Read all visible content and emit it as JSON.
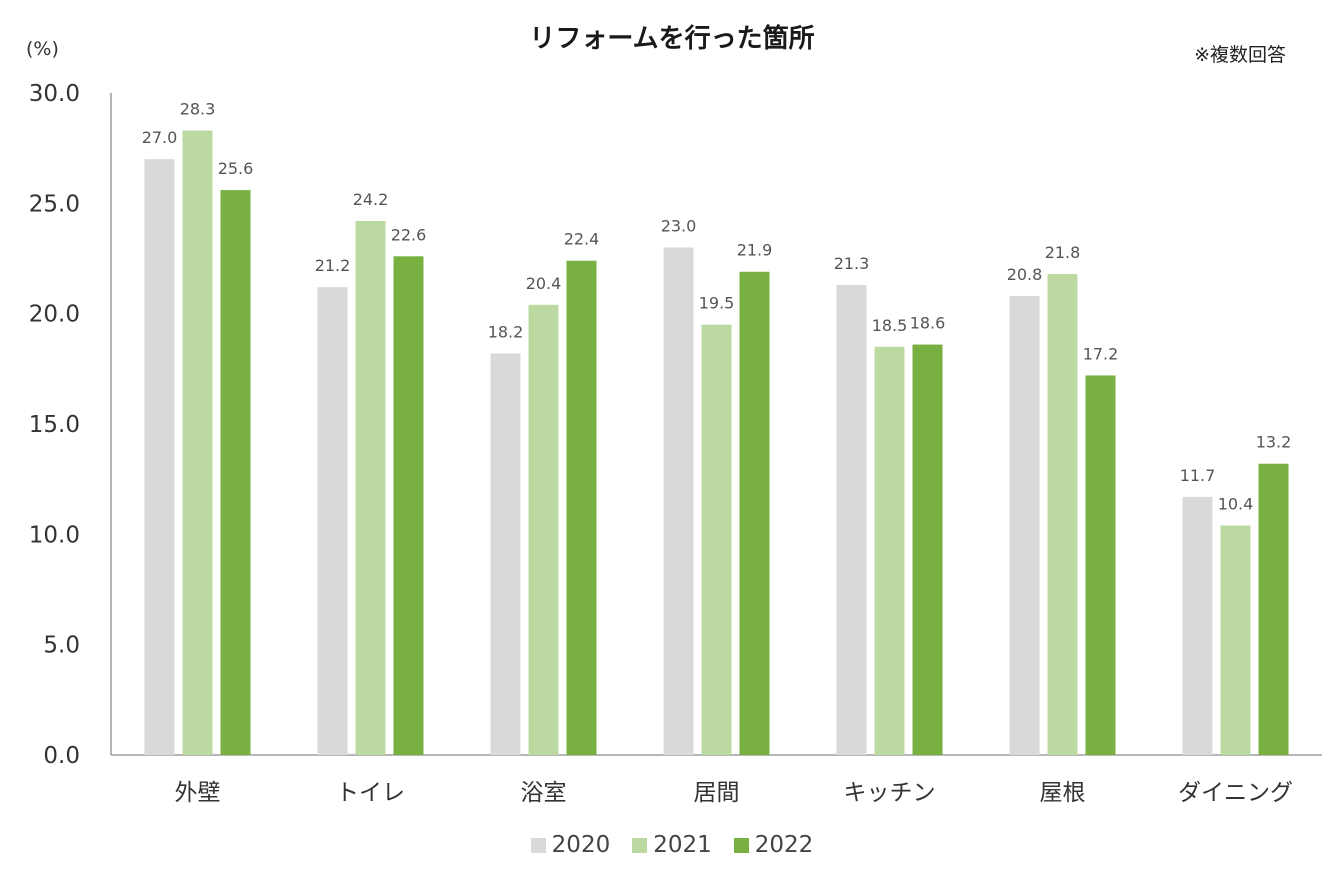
{
  "chart_data": {
    "type": "bar",
    "title": "リフォームを行った箇所",
    "unit_label": "(%)",
    "note": "※複数回答",
    "categories": [
      "外壁",
      "トイレ",
      "浴室",
      "居間",
      "キッチン",
      "屋根",
      "ダイニング"
    ],
    "series": [
      {
        "name": "2020",
        "color": "#d9d9d9",
        "values": [
          27.0,
          21.2,
          18.2,
          23.0,
          21.3,
          20.8,
          11.7
        ]
      },
      {
        "name": "2021",
        "color": "#bdd9a2",
        "values": [
          28.3,
          24.2,
          20.4,
          19.5,
          18.5,
          21.8,
          10.4
        ]
      },
      {
        "name": "2022",
        "color": "#78b142",
        "values": [
          25.6,
          22.6,
          22.4,
          21.9,
          18.6,
          17.2,
          13.2
        ]
      }
    ],
    "ylim": [
      0,
      30
    ],
    "yticks": [
      "0.0",
      "5.0",
      "10.0",
      "15.0",
      "20.0",
      "25.0",
      "30.0"
    ],
    "grid": false,
    "legend_position": "bottom"
  }
}
